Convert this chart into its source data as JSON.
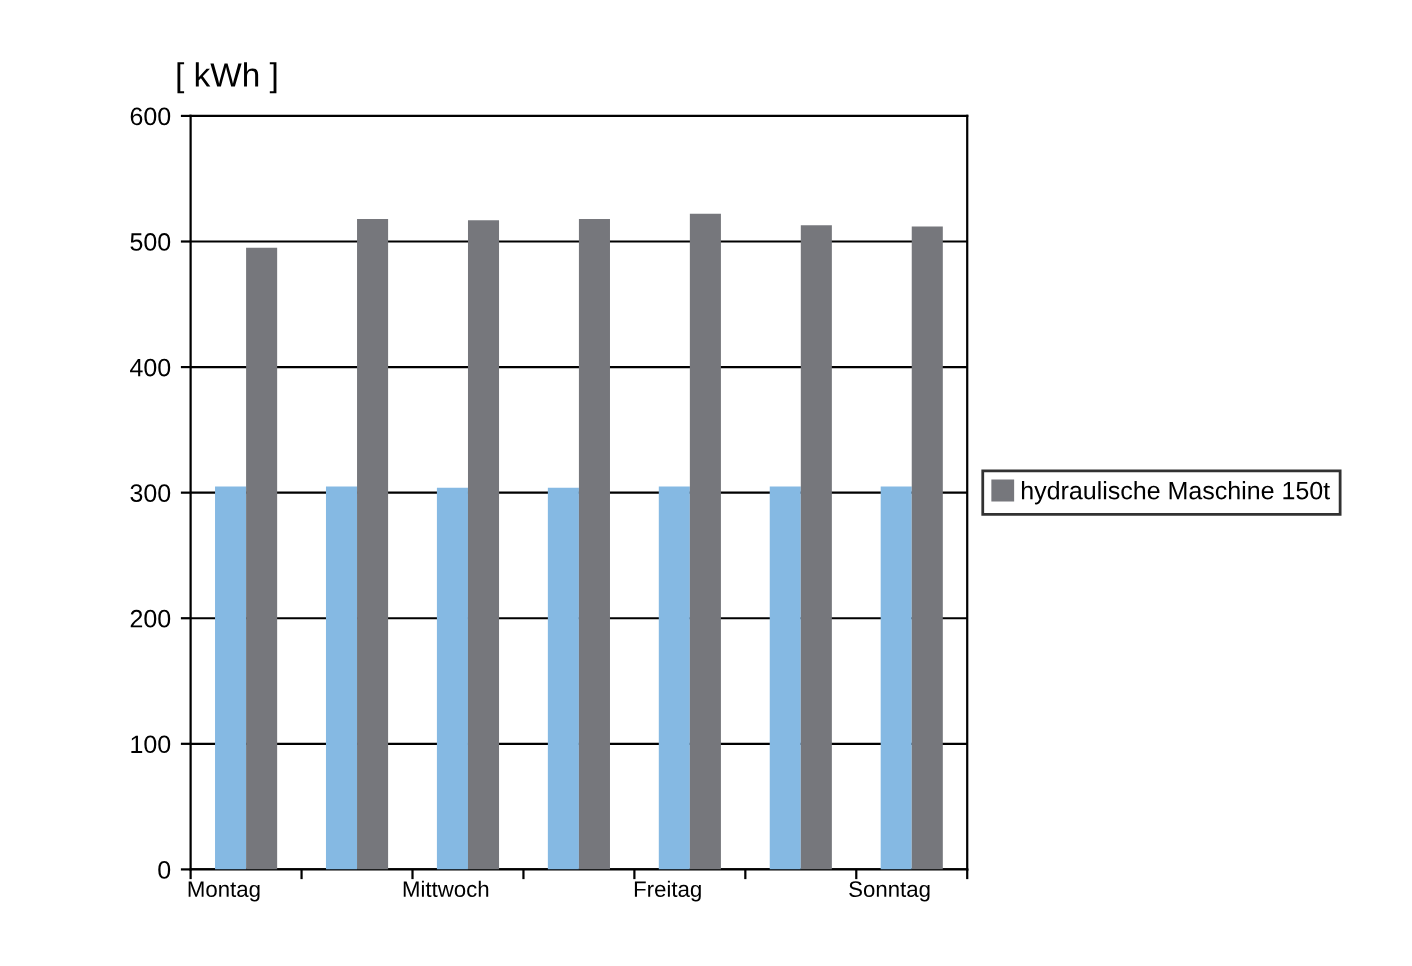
{
  "chart_data": {
    "type": "bar",
    "ylabel": "[ kWh ]",
    "categories": [
      "Montag",
      null,
      "Mittwoch",
      null,
      "Freitag",
      null,
      "Sonntag"
    ],
    "series": [
      {
        "color": "#85b9e3",
        "values": [
          305,
          305,
          304,
          304,
          305,
          305,
          305
        ]
      },
      {
        "name": "hydraulische Maschine 150t",
        "color": "#76777c",
        "values": [
          495,
          518,
          517,
          518,
          522,
          513,
          512
        ]
      }
    ],
    "ylim": [
      0,
      600
    ],
    "yticks": [
      0,
      100,
      200,
      300,
      400,
      500,
      600
    ],
    "grid": "y",
    "legend": "right"
  }
}
